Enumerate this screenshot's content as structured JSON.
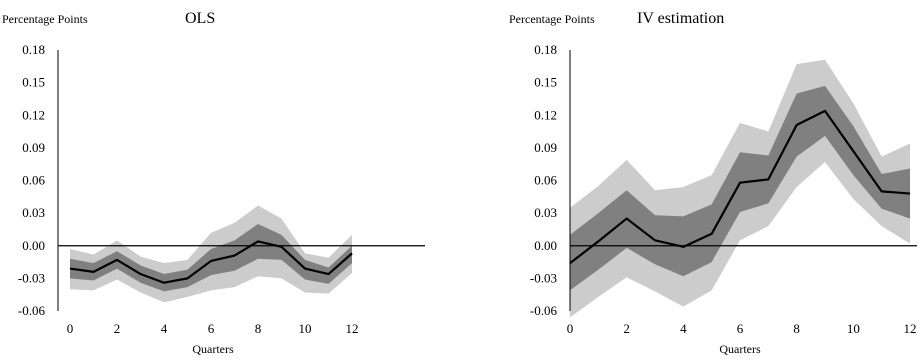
{
  "chart_data": [
    {
      "type": "line",
      "title": "OLS",
      "ylabel": "Percentage Points",
      "xlabel": "Quarters",
      "xlim": [
        0,
        12
      ],
      "ylim": [
        -0.06,
        0.18
      ],
      "x_ticks": [
        0,
        2,
        4,
        6,
        8,
        10,
        12
      ],
      "y_ticks": [
        "0.18",
        "0.15",
        "0.12",
        "0.09",
        "0.06",
        "0.03",
        "0.00",
        "-0.03",
        "-0.06"
      ],
      "colors": {
        "outer_band": "#cccccc",
        "inner_band": "#808080",
        "line": "#000000"
      },
      "x": [
        0,
        1,
        2,
        3,
        4,
        5,
        6,
        7,
        8,
        9,
        10,
        11,
        12
      ],
      "series": [
        {
          "role": "outer_upper",
          "values": [
            -0.003,
            -0.008,
            0.005,
            -0.01,
            -0.016,
            -0.013,
            0.012,
            0.021,
            0.037,
            0.025,
            -0.007,
            -0.011,
            0.01
          ]
        },
        {
          "role": "inner_upper",
          "values": [
            -0.012,
            -0.016,
            -0.005,
            -0.018,
            -0.026,
            -0.022,
            -0.003,
            0.005,
            0.02,
            0.01,
            -0.013,
            -0.02,
            0.0
          ]
        },
        {
          "role": "point_estimate",
          "values": [
            -0.021,
            -0.024,
            -0.013,
            -0.026,
            -0.034,
            -0.03,
            -0.014,
            -0.009,
            0.004,
            -0.001,
            -0.021,
            -0.026,
            -0.007
          ]
        },
        {
          "role": "inner_lower",
          "values": [
            -0.03,
            -0.032,
            -0.021,
            -0.034,
            -0.042,
            -0.038,
            -0.027,
            -0.023,
            -0.012,
            -0.013,
            -0.031,
            -0.035,
            -0.016
          ]
        },
        {
          "role": "outer_lower",
          "values": [
            -0.04,
            -0.041,
            -0.031,
            -0.043,
            -0.052,
            -0.047,
            -0.041,
            -0.038,
            -0.028,
            -0.03,
            -0.043,
            -0.044,
            -0.025
          ]
        }
      ]
    },
    {
      "type": "line",
      "title": "IV estimation",
      "ylabel": "Percentage Points",
      "xlabel": "Quarters",
      "xlim": [
        0,
        12
      ],
      "ylim": [
        -0.06,
        0.18
      ],
      "x_ticks": [
        0,
        2,
        4,
        6,
        8,
        10,
        12
      ],
      "y_ticks": [
        "0.18",
        "0.15",
        "0.12",
        "0.09",
        "0.06",
        "0.03",
        "0.00",
        "-0.03",
        "-0.06"
      ],
      "colors": {
        "outer_band": "#cccccc",
        "inner_band": "#808080",
        "line": "#000000"
      },
      "x": [
        0,
        1,
        2,
        3,
        4,
        5,
        6,
        7,
        8,
        9,
        10,
        11,
        12
      ],
      "series": [
        {
          "role": "outer_upper",
          "values": [
            0.035,
            0.055,
            0.079,
            0.051,
            0.054,
            0.065,
            0.113,
            0.105,
            0.167,
            0.171,
            0.131,
            0.082,
            0.094
          ]
        },
        {
          "role": "inner_upper",
          "values": [
            0.01,
            0.03,
            0.051,
            0.028,
            0.027,
            0.038,
            0.086,
            0.083,
            0.14,
            0.147,
            0.11,
            0.066,
            0.071
          ]
        },
        {
          "role": "point_estimate",
          "values": [
            -0.016,
            0.004,
            0.025,
            0.005,
            -0.001,
            0.011,
            0.058,
            0.061,
            0.111,
            0.124,
            0.087,
            0.05,
            0.048
          ]
        },
        {
          "role": "inner_lower",
          "values": [
            -0.041,
            -0.022,
            -0.002,
            -0.017,
            -0.028,
            -0.015,
            0.031,
            0.039,
            0.082,
            0.101,
            0.065,
            0.034,
            0.025
          ]
        },
        {
          "role": "outer_lower",
          "values": [
            -0.066,
            -0.047,
            -0.029,
            -0.042,
            -0.056,
            -0.041,
            0.005,
            0.018,
            0.054,
            0.077,
            0.043,
            0.018,
            0.002
          ]
        }
      ]
    }
  ]
}
